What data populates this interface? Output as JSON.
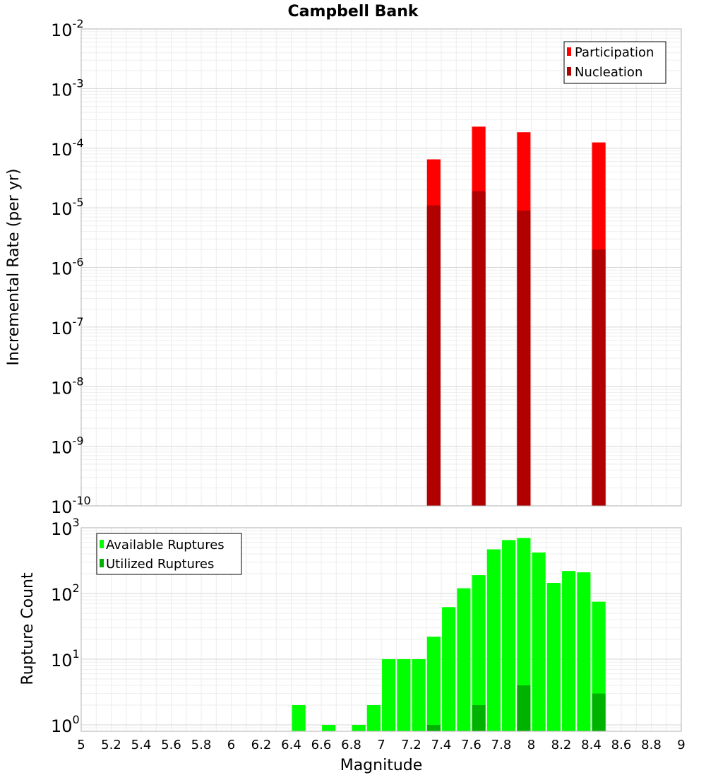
{
  "page": {
    "title": "Campbell Bank"
  },
  "chart_data": [
    {
      "type": "bar",
      "title": "Campbell Bank",
      "ylabel": "Incremental Rate (per yr)",
      "xlabel": "",
      "yscale": "log",
      "ylim": [
        1e-10,
        0.01
      ],
      "xlim": [
        5,
        9
      ],
      "bar_width": 0.09,
      "grid": true,
      "legend_position": "top-right",
      "y_tick_labels": [
        {
          "base": "10",
          "exp": "-10",
          "value": 1e-10
        },
        {
          "base": "10",
          "exp": "-9",
          "value": 1e-09
        },
        {
          "base": "10",
          "exp": "-8",
          "value": 1e-08
        },
        {
          "base": "10",
          "exp": "-7",
          "value": 1e-07
        },
        {
          "base": "10",
          "exp": "-6",
          "value": 1e-06
        },
        {
          "base": "10",
          "exp": "-5",
          "value": 1e-05
        },
        {
          "base": "10",
          "exp": "-4",
          "value": 0.0001
        },
        {
          "base": "10",
          "exp": "-3",
          "value": 0.001
        },
        {
          "base": "10",
          "exp": "-2",
          "value": 0.01
        }
      ],
      "series": [
        {
          "name": "Participation",
          "color": "#ff0000",
          "x": [
            7.35,
            7.65,
            7.95,
            8.45
          ],
          "values": [
            6.5e-05,
            0.00023,
            0.000185,
            0.000125
          ]
        },
        {
          "name": "Nucleation",
          "color": "#b00000",
          "x": [
            7.35,
            7.65,
            7.95,
            8.45
          ],
          "values": [
            1.1e-05,
            1.9e-05,
            9e-06,
            2e-06
          ]
        }
      ]
    },
    {
      "type": "bar",
      "title": "",
      "ylabel": "Rupture Count",
      "xlabel": "Magnitude",
      "yscale": "log",
      "ylim": [
        0.8,
        1000
      ],
      "xlim": [
        5,
        9
      ],
      "bar_width": 0.09,
      "grid": true,
      "legend_position": "top-left",
      "x_tick_labels": [
        "5",
        "5.2",
        "5.4",
        "5.6",
        "5.8",
        "6",
        "6.2",
        "6.4",
        "6.6",
        "6.8",
        "7",
        "7.2",
        "7.4",
        "7.6",
        "7.8",
        "8",
        "8.2",
        "8.4",
        "8.6",
        "8.8",
        "9"
      ],
      "y_tick_labels": [
        {
          "base": "10",
          "exp": "0",
          "value": 1
        },
        {
          "base": "10",
          "exp": "1",
          "value": 10
        },
        {
          "base": "10",
          "exp": "2",
          "value": 100
        },
        {
          "base": "10",
          "exp": "3",
          "value": 1000
        }
      ],
      "series": [
        {
          "name": "Available Ruptures",
          "color": "#00ff00",
          "x": [
            6.45,
            6.65,
            6.85,
            6.95,
            7.05,
            7.15,
            7.25,
            7.35,
            7.45,
            7.55,
            7.65,
            7.75,
            7.85,
            7.95,
            8.05,
            8.15,
            8.25,
            8.35,
            8.45
          ],
          "values": [
            2,
            1,
            1,
            2,
            10,
            10,
            10,
            22,
            62,
            120,
            190,
            470,
            650,
            700,
            420,
            145,
            220,
            210,
            75
          ]
        },
        {
          "name": "Utilized Ruptures",
          "color": "#00b200",
          "x": [
            7.35,
            7.65,
            7.95,
            8.45
          ],
          "values": [
            1,
            2,
            4,
            3
          ]
        }
      ]
    }
  ]
}
